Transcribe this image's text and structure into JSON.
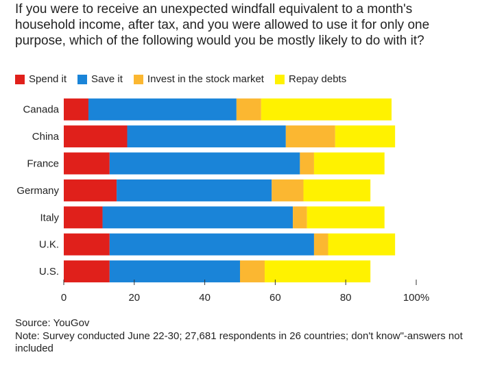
{
  "title": "If you were to receive an unexpected windfall equivalent to a month's household income, after tax, and you were allowed to use it for only one purpose, which of the following would you be mostly likely to do with it?",
  "source": "Source: YouGov",
  "note": "Note: Survey conducted June 22-30; 27,681 respondents in 26 countries; don't know\"-answers not included",
  "colors": {
    "spend": "#e0201b",
    "save": "#1a84d8",
    "invest": "#fbb731",
    "repay": "#fff200"
  },
  "chart_data": {
    "type": "bar",
    "orientation": "horizontal",
    "stacked": true,
    "categories": [
      "Canada",
      "China",
      "France",
      "Germany",
      "Italy",
      "U.K.",
      "U.S."
    ],
    "series": [
      {
        "name": "Spend it",
        "color": "#e0201b",
        "values": [
          7,
          18,
          13,
          15,
          11,
          13,
          13
        ]
      },
      {
        "name": "Save it",
        "color": "#1a84d8",
        "values": [
          42,
          45,
          54,
          44,
          54,
          58,
          37
        ]
      },
      {
        "name": "Invest in the stock market",
        "color": "#fbb731",
        "values": [
          7,
          14,
          4,
          9,
          4,
          4,
          7
        ]
      },
      {
        "name": "Repay debts",
        "color": "#fff200",
        "values": [
          37,
          17,
          20,
          19,
          22,
          19,
          30
        ]
      }
    ],
    "xlim": [
      0,
      100
    ],
    "x_ticks": [
      0,
      20,
      40,
      60,
      80,
      100
    ],
    "x_tick_labels": [
      "0",
      "20",
      "40",
      "60",
      "80",
      "100%"
    ],
    "legend_position": "top-left",
    "grid": false
  }
}
